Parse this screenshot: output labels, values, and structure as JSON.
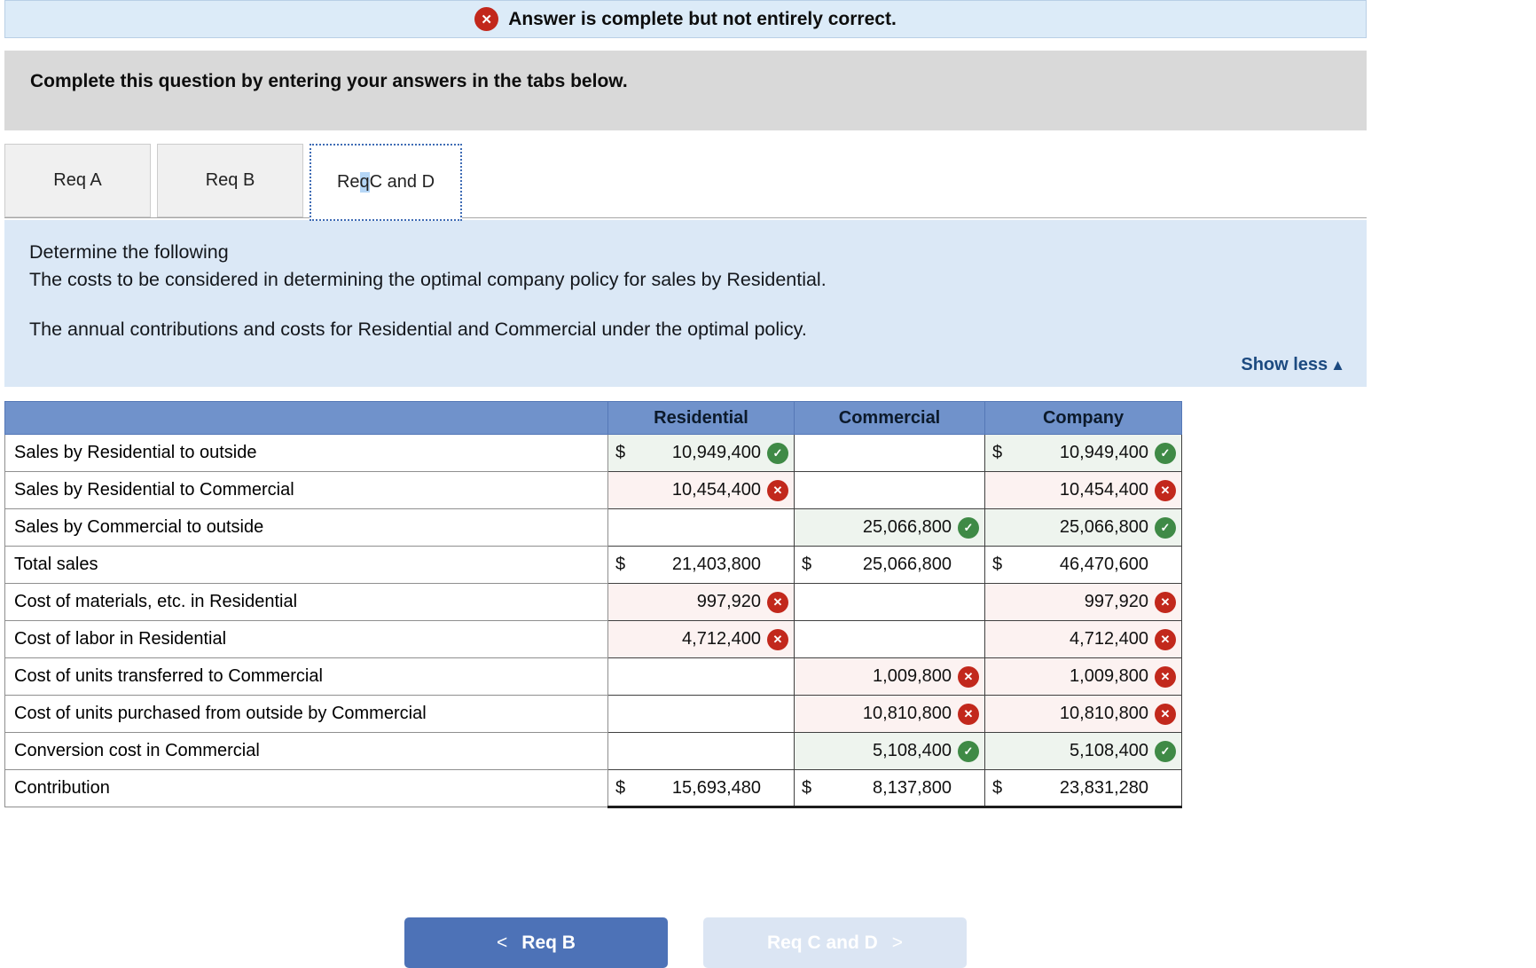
{
  "colors": {
    "banner_bg": "#dcebf8",
    "banner_border": "#b9cfe6",
    "prompt_bar_bg": "#d9d9d9",
    "panel_bg": "#dbe8f6",
    "header_bg": "#7092cb",
    "header_border": "#5578b7",
    "correct_bg": "#eef4ee",
    "incorrect_bg": "#fcf2f1",
    "correct_icon": "#3f8a46",
    "incorrect_icon": "#c2281c",
    "active_tab_border": "#3f6cb5",
    "primary_button_bg": "#4d72b7",
    "disabled_button_bg": "#dbe5f3",
    "show_less_color": "#1c4a80"
  },
  "icons": {
    "error_glyph": "✕",
    "correct_glyph": "✓",
    "incorrect_glyph": "✕",
    "up_arrow": "▲",
    "chevron_left": "<",
    "chevron_right": ">"
  },
  "banner": {
    "text": "Answer is complete but not entirely correct."
  },
  "prompt_bar": {
    "text": "Complete this question by entering your answers in the tabs below."
  },
  "tabs": [
    {
      "label": "Req A",
      "active": false
    },
    {
      "label": "Req B",
      "active": false
    },
    {
      "label": "Req C and D",
      "active": true
    }
  ],
  "question_panel": {
    "line1": "Determine the following",
    "line2": "The costs to be considered in determining the optimal company policy for sales by Residential.",
    "line3": "The annual contributions and costs for Residential and Commercial under the optimal policy.",
    "show_less_label": "Show less"
  },
  "table": {
    "columns": [
      "Residential",
      "Commercial",
      "Company"
    ],
    "rows": [
      {
        "label": "Sales by Residential to outside",
        "cells": [
          {
            "dollar": "$",
            "value": "10,949,400",
            "status": "correct"
          },
          {
            "dollar": "",
            "value": "",
            "status": "none"
          },
          {
            "dollar": "$",
            "value": "10,949,400",
            "status": "correct"
          }
        ]
      },
      {
        "label": "Sales by Residential to Commercial",
        "cells": [
          {
            "dollar": "",
            "value": "10,454,400",
            "status": "incorrect"
          },
          {
            "dollar": "",
            "value": "",
            "status": "none"
          },
          {
            "dollar": "",
            "value": "10,454,400",
            "status": "incorrect"
          }
        ]
      },
      {
        "label": "Sales by Commercial to outside",
        "cells": [
          {
            "dollar": "",
            "value": "",
            "status": "none"
          },
          {
            "dollar": "",
            "value": "25,066,800",
            "status": "correct"
          },
          {
            "dollar": "",
            "value": "25,066,800",
            "status": "correct"
          }
        ]
      },
      {
        "label": "Total sales",
        "cells": [
          {
            "dollar": "$",
            "value": "21,403,800",
            "status": "none"
          },
          {
            "dollar": "$",
            "value": "25,066,800",
            "status": "none"
          },
          {
            "dollar": "$",
            "value": "46,470,600",
            "status": "none"
          }
        ]
      },
      {
        "label": "Cost of materials, etc. in Residential",
        "cells": [
          {
            "dollar": "",
            "value": "997,920",
            "status": "incorrect"
          },
          {
            "dollar": "",
            "value": "",
            "status": "none"
          },
          {
            "dollar": "",
            "value": "997,920",
            "status": "incorrect"
          }
        ]
      },
      {
        "label": "Cost of labor in Residential",
        "cells": [
          {
            "dollar": "",
            "value": "4,712,400",
            "status": "incorrect"
          },
          {
            "dollar": "",
            "value": "",
            "status": "none"
          },
          {
            "dollar": "",
            "value": "4,712,400",
            "status": "incorrect"
          }
        ]
      },
      {
        "label": "Cost of units transferred to Commercial",
        "cells": [
          {
            "dollar": "",
            "value": "",
            "status": "none"
          },
          {
            "dollar": "",
            "value": "1,009,800",
            "status": "incorrect"
          },
          {
            "dollar": "",
            "value": "1,009,800",
            "status": "incorrect"
          }
        ]
      },
      {
        "label": "Cost of units purchased from outside by Commercial",
        "cells": [
          {
            "dollar": "",
            "value": "",
            "status": "none"
          },
          {
            "dollar": "",
            "value": "10,810,800",
            "status": "incorrect"
          },
          {
            "dollar": "",
            "value": "10,810,800",
            "status": "incorrect"
          }
        ]
      },
      {
        "label": "Conversion cost in Commercial",
        "cells": [
          {
            "dollar": "",
            "value": "",
            "status": "none"
          },
          {
            "dollar": "",
            "value": "5,108,400",
            "status": "correct"
          },
          {
            "dollar": "",
            "value": "5,108,400",
            "status": "correct"
          }
        ]
      },
      {
        "label": "Contribution",
        "cells": [
          {
            "dollar": "$",
            "value": "15,693,480",
            "status": "none"
          },
          {
            "dollar": "$",
            "value": "8,137,800",
            "status": "none"
          },
          {
            "dollar": "$",
            "value": "23,831,280",
            "status": "none"
          }
        ],
        "total_row": true
      }
    ]
  },
  "footer": {
    "prev_label": "Req B",
    "next_label": "Req C and D"
  }
}
